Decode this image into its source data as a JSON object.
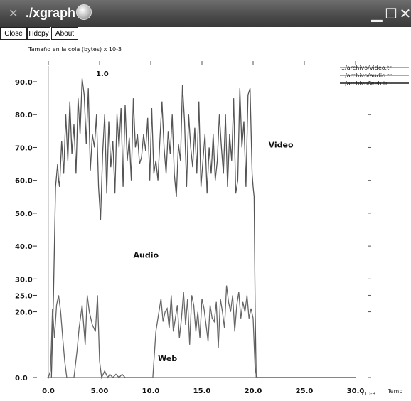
{
  "window": {
    "title": "./xgraph",
    "icons": {
      "app": "x-logo-icon",
      "badge": "skull-icon",
      "minimize": "minimize-icon",
      "maximize": "maximize-icon",
      "close": "close-icon"
    }
  },
  "toolbar": {
    "close_label": "Close",
    "hdcpy_label": "Hdcpy",
    "about_label": "About"
  },
  "chart_data": {
    "type": "line",
    "title": "",
    "ylabel": "Tamaño en la cola (bytes) x 10-3",
    "xlabel": "Temp",
    "x_exponent": "x10-3",
    "marker": "1.0",
    "xlim": [
      0,
      30
    ],
    "ylim": [
      0,
      90
    ],
    "x_ticks": [
      "0.0",
      "5.00",
      "10.0",
      "15.0",
      "20.0",
      "25.0",
      "30.0"
    ],
    "y_ticks": [
      {
        "v": 0,
        "label": "0.0"
      },
      {
        "v": 20,
        "label": "20.0"
      },
      {
        "v": 25,
        "label": "25.0"
      },
      {
        "v": 30,
        "label": "30.0"
      },
      {
        "v": 40,
        "label": "40.0"
      },
      {
        "v": 50,
        "label": "50.0"
      },
      {
        "v": 60,
        "label": "60.0"
      },
      {
        "v": 70,
        "label": "70.0"
      },
      {
        "v": 80,
        "label": "80.0"
      },
      {
        "v": 90,
        "label": "90.0"
      }
    ],
    "legend": [
      "../archivo/video.tr",
      "../archivo/audio.tr",
      "../archivo/web.tr"
    ],
    "series_labels": [
      {
        "text": "Video",
        "x": 21.5,
        "y": 70
      },
      {
        "text": "Audio",
        "x": 8.3,
        "y": 36.5
      },
      {
        "text": "Web",
        "x": 10.7,
        "y": 5
      }
    ],
    "series": [
      {
        "name": "../archivo/video.tr",
        "x": [
          0.3,
          0.5,
          0.7,
          0.9,
          1.0,
          1.1,
          1.3,
          1.5,
          1.7,
          1.9,
          2.1,
          2.3,
          2.5,
          2.7,
          2.9,
          3.1,
          3.3,
          3.5,
          3.7,
          3.9,
          4.1,
          4.3,
          4.5,
          4.7,
          4.9,
          5.1,
          5.3,
          5.5,
          5.7,
          5.9,
          6.1,
          6.3,
          6.5,
          6.7,
          6.9,
          7.1,
          7.3,
          7.5,
          7.7,
          7.9,
          8.1,
          8.3,
          8.5,
          8.7,
          8.9,
          9.1,
          9.3,
          9.5,
          9.7,
          9.9,
          10.1,
          10.3,
          10.5,
          10.7,
          10.9,
          11.1,
          11.3,
          11.5,
          11.7,
          11.9,
          12.1,
          12.3,
          12.5,
          12.7,
          12.9,
          13.1,
          13.3,
          13.5,
          13.7,
          13.9,
          14.1,
          14.3,
          14.5,
          14.7,
          14.9,
          15.1,
          15.3,
          15.5,
          15.7,
          15.9,
          16.1,
          16.3,
          16.5,
          16.7,
          16.9,
          17.1,
          17.3,
          17.5,
          17.7,
          17.9,
          18.1,
          18.3,
          18.5,
          18.7,
          18.9,
          19.1,
          19.3,
          19.5,
          19.7,
          19.9,
          20.0,
          20.1,
          20.2,
          20.3,
          20.5,
          21.0,
          30.0
        ],
        "y": [
          0,
          25,
          58,
          65,
          60,
          58,
          72,
          62,
          80,
          66,
          84,
          68,
          77,
          62,
          85,
          74,
          91,
          86,
          71,
          88,
          63,
          74,
          70,
          80,
          58,
          48,
          68,
          80,
          56,
          78,
          64,
          72,
          56,
          80,
          70,
          82,
          58,
          83,
          66,
          73,
          60,
          85,
          70,
          74,
          65,
          67,
          74,
          69,
          79,
          60,
          82,
          62,
          66,
          60,
          73,
          84,
          70,
          62,
          75,
          68,
          80,
          62,
          55,
          71,
          66,
          89,
          78,
          58,
          80,
          70,
          64,
          76,
          62,
          84,
          58,
          66,
          74,
          56,
          70,
          62,
          74,
          60,
          66,
          80,
          70,
          62,
          80,
          58,
          74,
          66,
          85,
          56,
          60,
          88,
          70,
          78,
          58,
          86,
          88,
          62,
          58,
          55,
          20,
          0,
          0,
          0,
          0
        ]
      },
      {
        "name": "../archivo/audio.tr",
        "x": [
          0.0,
          30.0
        ],
        "y": [
          0,
          0
        ]
      },
      {
        "name": "../archivo/web.tr",
        "x": [
          0.0,
          0.2,
          0.3,
          0.4,
          0.6,
          0.8,
          1.0,
          1.2,
          1.4,
          1.6,
          1.8,
          2.0,
          2.2,
          2.5,
          2.8,
          3.0,
          3.3,
          3.6,
          3.8,
          4.0,
          4.3,
          4.6,
          4.8,
          5.0,
          5.2,
          5.5,
          5.8,
          6.0,
          6.3,
          6.6,
          6.9,
          7.2,
          7.5,
          7.8,
          8.1,
          8.4,
          8.7,
          9.0,
          9.3,
          9.6,
          9.9,
          10.2,
          10.5,
          10.8,
          11.0,
          11.2,
          11.4,
          11.6,
          11.8,
          12.0,
          12.2,
          12.4,
          12.6,
          12.8,
          13.0,
          13.2,
          13.4,
          13.6,
          13.8,
          14.0,
          14.2,
          14.4,
          14.6,
          14.8,
          15.0,
          15.2,
          15.4,
          15.6,
          15.8,
          16.0,
          16.2,
          16.4,
          16.6,
          16.8,
          17.0,
          17.2,
          17.4,
          17.6,
          17.8,
          18.0,
          18.2,
          18.4,
          18.6,
          18.8,
          19.0,
          19.2,
          19.4,
          19.6,
          19.8,
          20.0,
          20.2,
          20.4,
          30.0
        ],
        "y": [
          0,
          2,
          10,
          21,
          12,
          22,
          25,
          20,
          12,
          5,
          0,
          0,
          0,
          0,
          8,
          15,
          22,
          10,
          25,
          20,
          16,
          14,
          25,
          5,
          0,
          2,
          0,
          1,
          0,
          1,
          0,
          1,
          0,
          0,
          0,
          0,
          0,
          0,
          0,
          0,
          0,
          0,
          14,
          20,
          24,
          17,
          20,
          21,
          15,
          25,
          14,
          18,
          22,
          12,
          18,
          26,
          16,
          24,
          10,
          25,
          22,
          14,
          20,
          12,
          24,
          21,
          16,
          11,
          22,
          18,
          17,
          23,
          9,
          24,
          20,
          15,
          28,
          23,
          20,
          25,
          14,
          22,
          26,
          18,
          23,
          20,
          25,
          18,
          21,
          18,
          2,
          0,
          0
        ]
      }
    ]
  }
}
